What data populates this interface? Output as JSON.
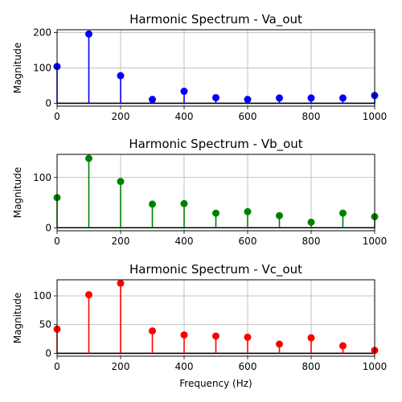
{
  "chart_data": [
    {
      "type": "stem",
      "title": "Harmonic Spectrum - Va_out",
      "xlabel": "",
      "ylabel": "Magnitude",
      "xlim": [
        0,
        1000
      ],
      "ylim": [
        -8,
        208
      ],
      "x_ticks": [
        0,
        200,
        400,
        600,
        800,
        1000
      ],
      "y_ticks": [
        0,
        100,
        200
      ],
      "grid": true,
      "color": "#0000ff",
      "x": [
        0,
        100,
        200,
        300,
        400,
        500,
        600,
        700,
        800,
        900,
        1000
      ],
      "values": [
        104,
        196,
        78,
        11,
        34,
        16,
        11,
        15,
        15,
        15,
        22
      ]
    },
    {
      "type": "stem",
      "title": "Harmonic Spectrum - Vb_out",
      "xlabel": "",
      "ylabel": "Magnitude",
      "xlim": [
        0,
        1000
      ],
      "ylim": [
        -6,
        146
      ],
      "x_ticks": [
        0,
        200,
        400,
        600,
        800,
        1000
      ],
      "y_ticks": [
        0,
        100
      ],
      "grid": true,
      "color": "#008000",
      "x": [
        0,
        100,
        200,
        300,
        400,
        500,
        600,
        700,
        800,
        900,
        1000
      ],
      "values": [
        60,
        138,
        92,
        47,
        48,
        29,
        32,
        24,
        11,
        29,
        22
      ]
    },
    {
      "type": "stem",
      "title": "Harmonic Spectrum - Vc_out",
      "xlabel": "Frequency (Hz)",
      "ylabel": "Magnitude",
      "xlim": [
        0,
        1000
      ],
      "ylim": [
        -5,
        128
      ],
      "x_ticks": [
        0,
        200,
        400,
        600,
        800,
        1000
      ],
      "y_ticks": [
        0,
        50,
        100
      ],
      "grid": true,
      "color": "#ff0000",
      "x": [
        0,
        100,
        200,
        300,
        400,
        500,
        600,
        700,
        800,
        900,
        1000
      ],
      "values": [
        42,
        102,
        122,
        39,
        32,
        30,
        28,
        16,
        27,
        13,
        5
      ]
    }
  ]
}
